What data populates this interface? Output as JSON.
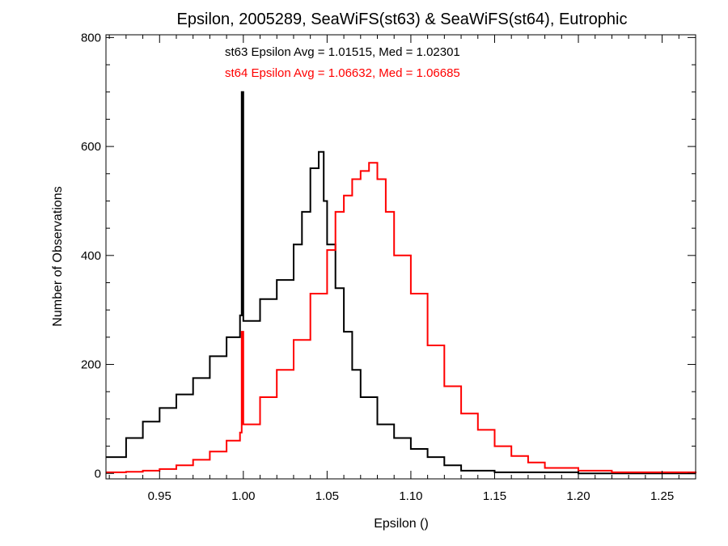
{
  "chart_data": {
    "type": "histogram",
    "title": "Epsilon, 2005289, SeaWiFS(st63) & SeaWiFS(st64), Eutrophic",
    "xlabel": "Epsilon ()",
    "ylabel": "Number of Observations",
    "xlim": [
      0.918,
      1.27
    ],
    "ylim": [
      -10,
      805
    ],
    "x_ticks": [
      0.95,
      1.0,
      1.05,
      1.1,
      1.15,
      1.2,
      1.25
    ],
    "x_tick_labels": [
      "0.95",
      "1.00",
      "1.05",
      "1.10",
      "1.15",
      "1.20",
      "1.25"
    ],
    "y_ticks": [
      0,
      200,
      400,
      600,
      800
    ],
    "y_tick_labels": [
      "0",
      "200",
      "400",
      "600",
      "800"
    ],
    "grid": false,
    "annotations": [
      {
        "text": "st63 Epsilon Avg = 1.01515, Med = 1.02301",
        "color": "#000000"
      },
      {
        "text": "st64 Epsilon Avg = 1.06632, Med = 1.06685",
        "color": "#ff0000"
      }
    ],
    "series": [
      {
        "color": "#000000",
        "points": [
          [
            0.918,
            30
          ],
          [
            0.93,
            65
          ],
          [
            0.94,
            95
          ],
          [
            0.95,
            120
          ],
          [
            0.96,
            145
          ],
          [
            0.97,
            175
          ],
          [
            0.98,
            215
          ],
          [
            0.99,
            250
          ],
          [
            0.998,
            290
          ],
          [
            0.999,
            700
          ],
          [
            1.0,
            280
          ],
          [
            1.01,
            320
          ],
          [
            1.02,
            355
          ],
          [
            1.03,
            420
          ],
          [
            1.035,
            480
          ],
          [
            1.04,
            560
          ],
          [
            1.045,
            590
          ],
          [
            1.048,
            500
          ],
          [
            1.05,
            420
          ],
          [
            1.055,
            340
          ],
          [
            1.06,
            260
          ],
          [
            1.065,
            190
          ],
          [
            1.07,
            140
          ],
          [
            1.08,
            90
          ],
          [
            1.09,
            65
          ],
          [
            1.1,
            45
          ],
          [
            1.11,
            30
          ],
          [
            1.12,
            15
          ],
          [
            1.13,
            5
          ],
          [
            1.15,
            2
          ],
          [
            1.2,
            0
          ],
          [
            1.27,
            0
          ]
        ]
      },
      {
        "color": "#ff0000",
        "points": [
          [
            0.918,
            2
          ],
          [
            0.93,
            3
          ],
          [
            0.94,
            5
          ],
          [
            0.95,
            8
          ],
          [
            0.96,
            15
          ],
          [
            0.97,
            25
          ],
          [
            0.98,
            40
          ],
          [
            0.99,
            60
          ],
          [
            0.998,
            75
          ],
          [
            0.999,
            260
          ],
          [
            1.0,
            90
          ],
          [
            1.01,
            140
          ],
          [
            1.02,
            190
          ],
          [
            1.03,
            245
          ],
          [
            1.04,
            330
          ],
          [
            1.05,
            410
          ],
          [
            1.055,
            480
          ],
          [
            1.06,
            510
          ],
          [
            1.065,
            540
          ],
          [
            1.07,
            555
          ],
          [
            1.075,
            570
          ],
          [
            1.08,
            540
          ],
          [
            1.085,
            480
          ],
          [
            1.09,
            400
          ],
          [
            1.1,
            330
          ],
          [
            1.11,
            235
          ],
          [
            1.12,
            160
          ],
          [
            1.13,
            110
          ],
          [
            1.14,
            80
          ],
          [
            1.15,
            50
          ],
          [
            1.16,
            32
          ],
          [
            1.17,
            20
          ],
          [
            1.18,
            10
          ],
          [
            1.2,
            5
          ],
          [
            1.22,
            2
          ],
          [
            1.27,
            0
          ]
        ]
      }
    ]
  }
}
